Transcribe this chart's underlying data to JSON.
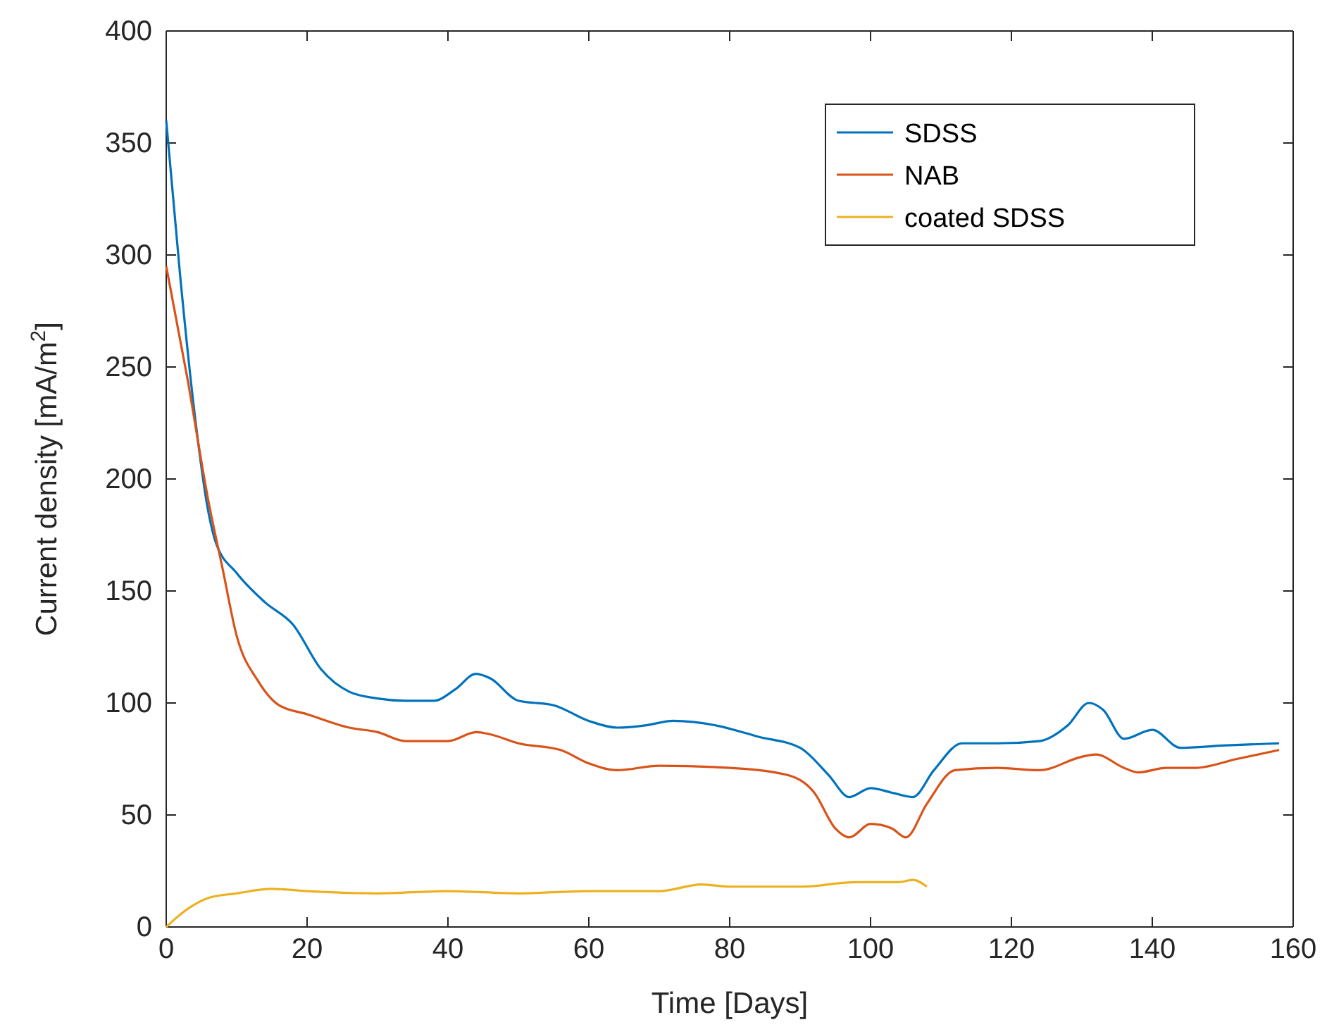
{
  "chart_data": {
    "type": "line",
    "xlabel": "Time [Days]",
    "ylabel": "Current density [mA/m$^{2}$]",
    "xlim": [
      0,
      160
    ],
    "xticks": [
      0,
      20,
      40,
      60,
      80,
      100,
      120,
      140,
      160
    ],
    "ylim": [
      0,
      400
    ],
    "yticks": [
      0,
      50,
      100,
      150,
      200,
      250,
      300,
      350,
      400
    ],
    "grid": false,
    "legend": "top right",
    "line_style": "solid",
    "marker": "none",
    "series": [
      {
        "name": "SDSS",
        "color": "#0072bd",
        "x": [
          0,
          2,
          4,
          6,
          7,
          10,
          14,
          18,
          22,
          26,
          30,
          34,
          38,
          41,
          44,
          46,
          50,
          55,
          60,
          64,
          68,
          72,
          78,
          84,
          90,
          94,
          97,
          100,
          103,
          106,
          109,
          113,
          118,
          124,
          128,
          131,
          133,
          136,
          140,
          144,
          150,
          158
        ],
        "values": [
          360,
          290,
          230,
          185,
          172,
          158,
          145,
          135,
          115,
          105,
          102,
          101,
          101,
          106,
          113,
          111,
          101,
          99,
          92,
          89,
          90,
          92,
          90,
          85,
          80,
          68,
          58,
          62,
          60,
          58,
          70,
          82,
          82,
          83,
          90,
          100,
          97,
          84,
          88,
          80,
          81,
          82
        ]
      },
      {
        "name": "NAB",
        "color": "#d95319",
        "x": [
          0,
          3,
          6,
          8,
          10,
          13,
          16,
          20,
          26,
          30,
          34,
          40,
          44,
          46,
          50,
          56,
          60,
          64,
          70,
          80,
          88,
          92,
          95,
          97,
          100,
          103,
          105,
          108,
          112,
          118,
          124,
          130,
          132,
          136,
          138,
          142,
          146,
          152,
          158
        ],
        "values": [
          295,
          245,
          190,
          160,
          130,
          110,
          99,
          95,
          89,
          87,
          83,
          83,
          87,
          86,
          82,
          79,
          73,
          70,
          72,
          71,
          68,
          60,
          44,
          40,
          46,
          44,
          40,
          55,
          70,
          71,
          70,
          76,
          77,
          71,
          69,
          71,
          71,
          75,
          79
        ]
      },
      {
        "name": "coated SDSS",
        "color": "#edb120",
        "x": [
          0,
          3,
          6,
          10,
          15,
          20,
          30,
          40,
          50,
          60,
          70,
          76,
          80,
          90,
          98,
          104,
          106,
          108
        ],
        "values": [
          0,
          8,
          13,
          15,
          17,
          16,
          15,
          16,
          15,
          16,
          16,
          19,
          18,
          18,
          20,
          20,
          21,
          18
        ]
      }
    ]
  }
}
